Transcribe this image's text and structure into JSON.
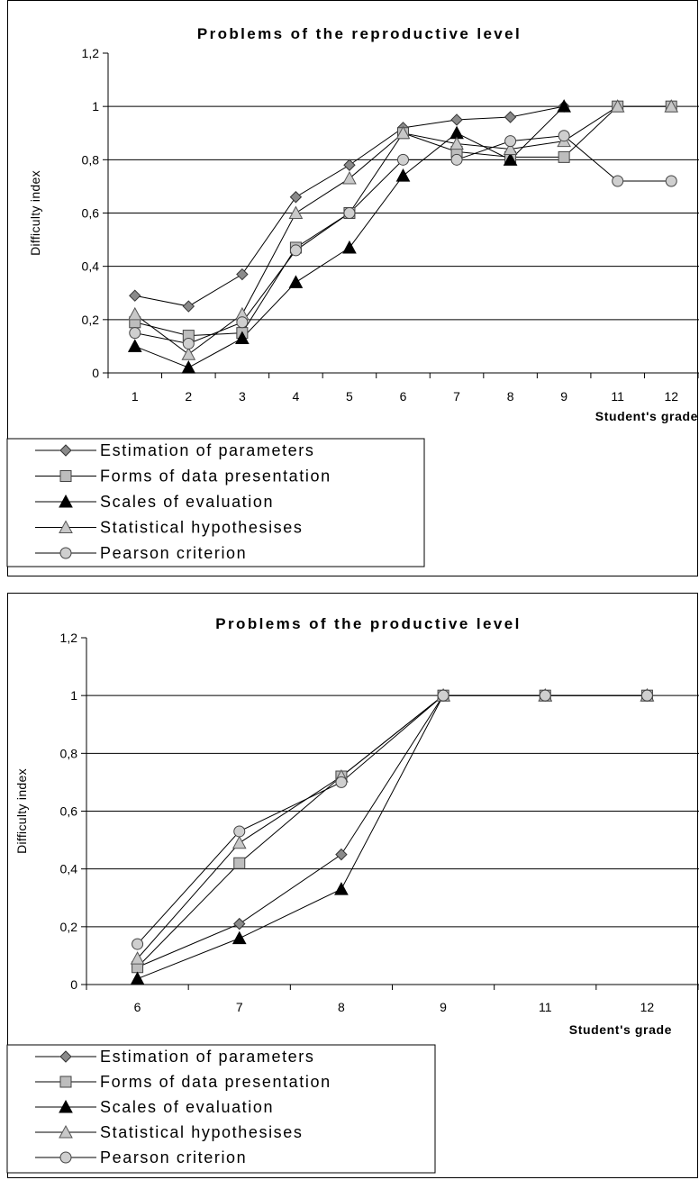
{
  "chart_data": [
    {
      "type": "line",
      "title": "Problems of the reproductive level",
      "xlabel": "Student's grade",
      "ylabel": "Difficulty index",
      "categories": [
        "1",
        "2",
        "3",
        "4",
        "5",
        "6",
        "7",
        "8",
        "9",
        "11",
        "12"
      ],
      "yticks": [
        "0",
        "0,2",
        "0,4",
        "0,6",
        "0,8",
        "1",
        "1,2"
      ],
      "ylim": [
        0,
        1.2
      ],
      "grid": "horizontal",
      "legend_position": "bottom-left",
      "series": [
        {
          "name": "Estimation of parameters",
          "marker": "diamond",
          "values": [
            0.29,
            0.25,
            0.37,
            0.66,
            0.78,
            0.92,
            0.95,
            0.96,
            1.0,
            null,
            null
          ]
        },
        {
          "name": "Forms of data presentation",
          "marker": "square",
          "values": [
            0.19,
            0.14,
            0.15,
            0.47,
            0.6,
            0.9,
            0.83,
            0.81,
            0.81,
            1.0,
            1.0
          ]
        },
        {
          "name": "Scales of evaluation",
          "marker": "triangle-filled",
          "values": [
            0.1,
            0.02,
            0.13,
            0.34,
            0.47,
            0.74,
            0.9,
            0.8,
            1.0,
            null,
            null
          ]
        },
        {
          "name": "Statistical hypothesises",
          "marker": "triangle-open",
          "values": [
            0.22,
            0.07,
            0.22,
            0.6,
            0.73,
            0.9,
            0.86,
            0.84,
            0.87,
            1.0,
            1.0
          ]
        },
        {
          "name": "Pearson criterion",
          "marker": "circle",
          "values": [
            0.15,
            0.11,
            0.19,
            0.46,
            0.6,
            0.8,
            0.8,
            0.87,
            0.89,
            0.72,
            0.72
          ]
        }
      ]
    },
    {
      "type": "line",
      "title": "Problems of the productive level",
      "xlabel": "Student's grade",
      "ylabel": "Difficulty index",
      "categories": [
        "6",
        "7",
        "8",
        "9",
        "11",
        "12"
      ],
      "yticks": [
        "0",
        "0,2",
        "0,4",
        "0,6",
        "0,8",
        "1",
        "1,2"
      ],
      "ylim": [
        0,
        1.2
      ],
      "grid": "horizontal",
      "legend_position": "bottom-left",
      "series": [
        {
          "name": "Estimation of parameters",
          "marker": "diamond",
          "values": [
            0.06,
            0.21,
            0.45,
            1.0,
            1.0,
            1.0
          ]
        },
        {
          "name": "Forms of data presentation",
          "marker": "square",
          "values": [
            0.06,
            0.42,
            0.72,
            1.0,
            1.0,
            1.0
          ]
        },
        {
          "name": "Scales of evaluation",
          "marker": "triangle-filled",
          "values": [
            0.02,
            0.16,
            0.33,
            1.0,
            1.0,
            1.0
          ]
        },
        {
          "name": "Statistical hypothesises",
          "marker": "triangle-open",
          "values": [
            0.09,
            0.49,
            0.72,
            1.0,
            1.0,
            1.0
          ]
        },
        {
          "name": "Pearson criterion",
          "marker": "circle",
          "values": [
            0.14,
            0.53,
            0.7,
            1.0,
            1.0,
            1.0
          ]
        }
      ]
    }
  ]
}
